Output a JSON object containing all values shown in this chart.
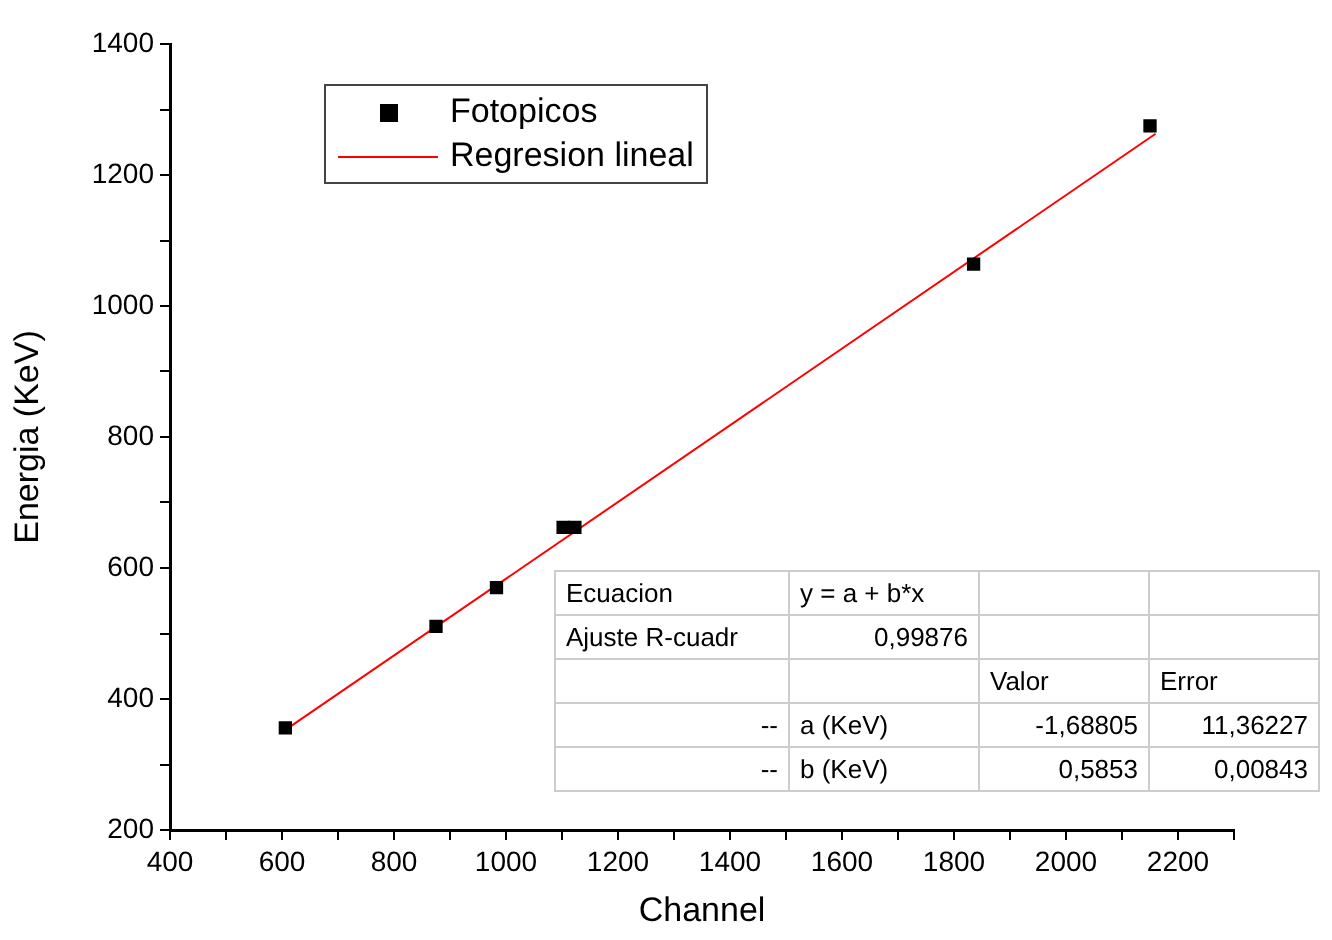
{
  "chart_data": {
    "type": "scatter",
    "xlabel": "Channel",
    "ylabel": "Energia (KeV)",
    "series": [
      {
        "name": "Fotopicos",
        "color": "#000000",
        "marker": "square",
        "x": [
          606,
          875,
          983,
          1102,
          1123,
          1835,
          2150
        ],
        "values": [
          356,
          511,
          570,
          662,
          662,
          1064,
          1275
        ]
      },
      {
        "name": "Regresion lineal",
        "type": "line",
        "color": "#ff0000",
        "marker": "none",
        "line_style": "solid",
        "x": [
          608,
          2160
        ],
        "values": [
          354,
          1263
        ]
      }
    ],
    "xlim": [
      400,
      2300
    ],
    "xticks": [
      400,
      {
        "value": 500,
        "label": null
      },
      600,
      {
        "value": 700,
        "label": null
      },
      800,
      {
        "value": 900,
        "label": null
      },
      1000,
      {
        "value": 1100,
        "label": null
      },
      1200,
      {
        "value": 1300,
        "label": null
      },
      1400,
      {
        "value": 1500,
        "label": null
      },
      1600,
      {
        "value": 1700,
        "label": null
      },
      1800,
      {
        "value": 1900,
        "label": null
      },
      2000,
      {
        "value": 2100,
        "label": null
      },
      2200,
      {
        "value": 2300,
        "label": null
      }
    ],
    "ylim": [
      200,
      1400
    ],
    "yticks": [
      200,
      {
        "value": 300,
        "label": null
      },
      400,
      {
        "value": 500,
        "label": null
      },
      600,
      {
        "value": 700,
        "label": null
      },
      800,
      {
        "value": 900,
        "label": null
      },
      1000,
      {
        "value": 1100,
        "label": null
      },
      1200,
      {
        "value": 1300,
        "label": null
      },
      1400
    ],
    "grid": false,
    "legend": "top left",
    "annotations": [
      "Ecuacion",
      "y = a + b*x",
      "Ajuste R-cuadr",
      "0,99876",
      "Valor",
      "Error",
      "--",
      "a (KeV)",
      "-1,68805",
      "11,36227",
      "--",
      "b (KeV)",
      "0,5853",
      "0,00843"
    ]
  }
}
